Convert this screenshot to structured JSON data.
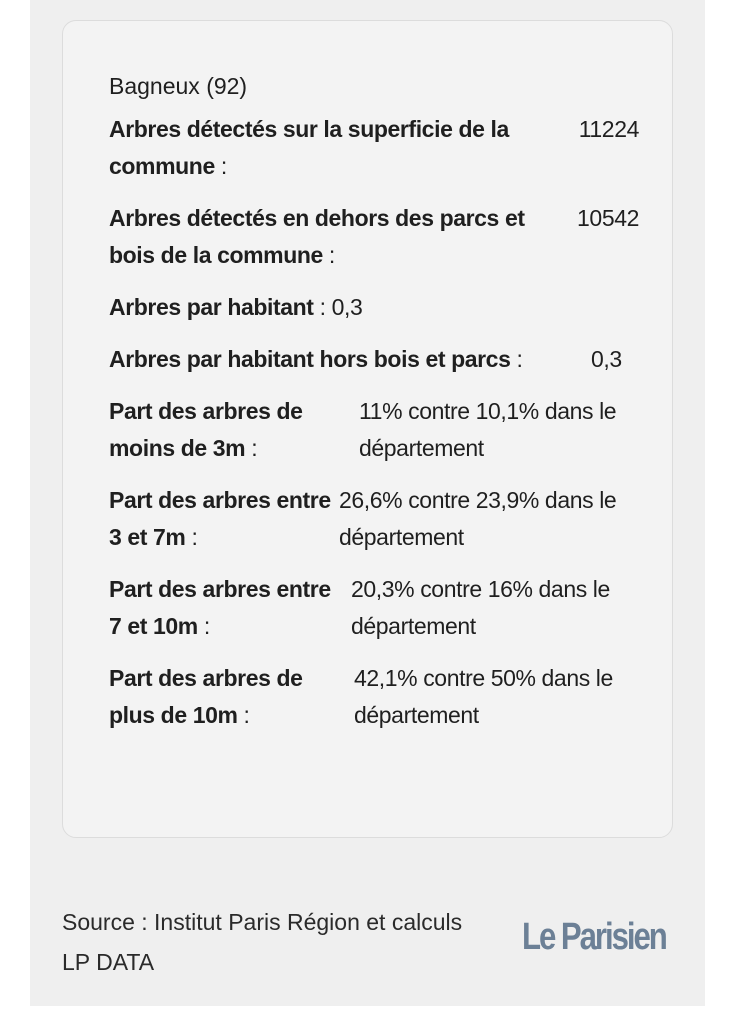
{
  "card": {
    "title": "Bagneux (92)",
    "rows": [
      {
        "label": "Arbres détectés sur la superficie de la commune",
        "sep": ":",
        "value": "11224"
      },
      {
        "label": "Arbres détectés en dehors des parcs et bois de la commune",
        "sep": ":",
        "value": "10542"
      },
      {
        "label": "Arbres par habitant",
        "sep": ":",
        "value": "0,3"
      },
      {
        "label": "Arbres par habitant hors bois et parcs",
        "sep": ":",
        "value": "0,3"
      },
      {
        "label": "Part des arbres de moins de 3m",
        "sep": ":",
        "value": "11% contre 10,1% dans le département"
      },
      {
        "label": "Part des arbres entre 3 et 7m",
        "sep": ":",
        "value": "26,6% contre 23,9% dans le département"
      },
      {
        "label": "Part des arbres entre 7 et 10m",
        "sep": ":",
        "value": "20,3% contre 16% dans le département"
      },
      {
        "label": "Part des arbres de plus de 10m",
        "sep": ":",
        "value": "42,1% contre 50% dans le département"
      }
    ]
  },
  "footer": {
    "source": "Source : Institut Paris Région et calculs LP DATA",
    "logo": "Le Parisien"
  }
}
